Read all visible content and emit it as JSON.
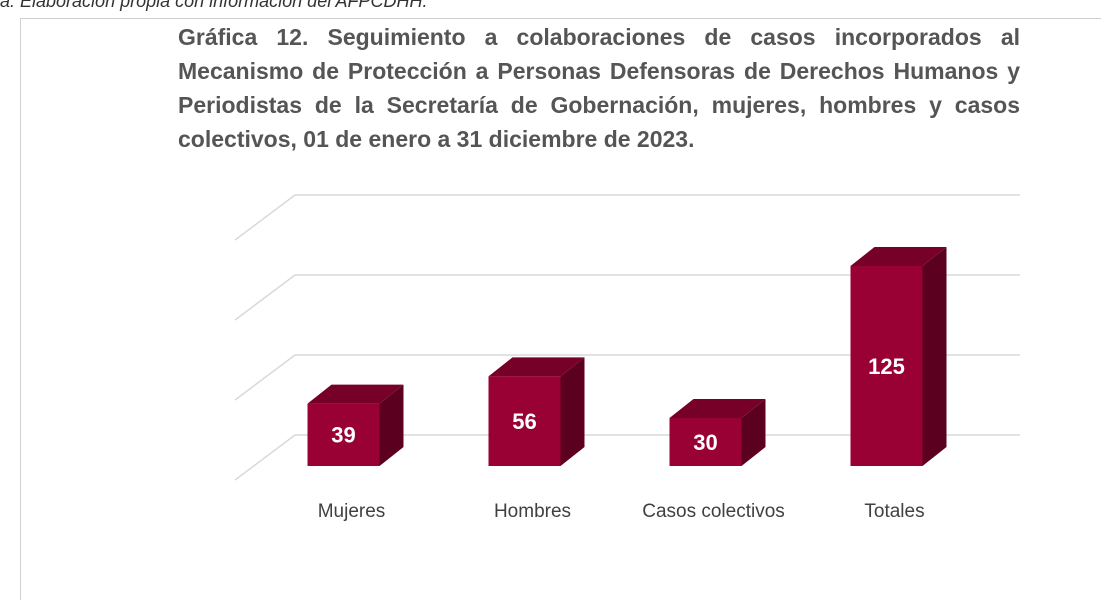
{
  "note": "a: Elaboración propia con información del AFPCDHH.",
  "chart_data": {
    "type": "bar3d",
    "title": "Gráfica 12.  Seguimiento a colaboraciones de casos incorporados al Mecanismo de Protección a Personas Defensoras de Derechos Humanos y Periodistas de la Secretaría de Gobernación, mujeres, hombres y casos colectivos, 01 de enero a 31 diciembre de 2023.",
    "categories": [
      "Mujeres",
      "Hombres",
      "Casos colectivos",
      "Totales"
    ],
    "values": [
      39,
      56,
      30,
      125
    ],
    "color": "#990033",
    "ylim": [
      0,
      150
    ],
    "yticks": [
      0,
      50,
      100,
      150
    ],
    "grid": true
  }
}
